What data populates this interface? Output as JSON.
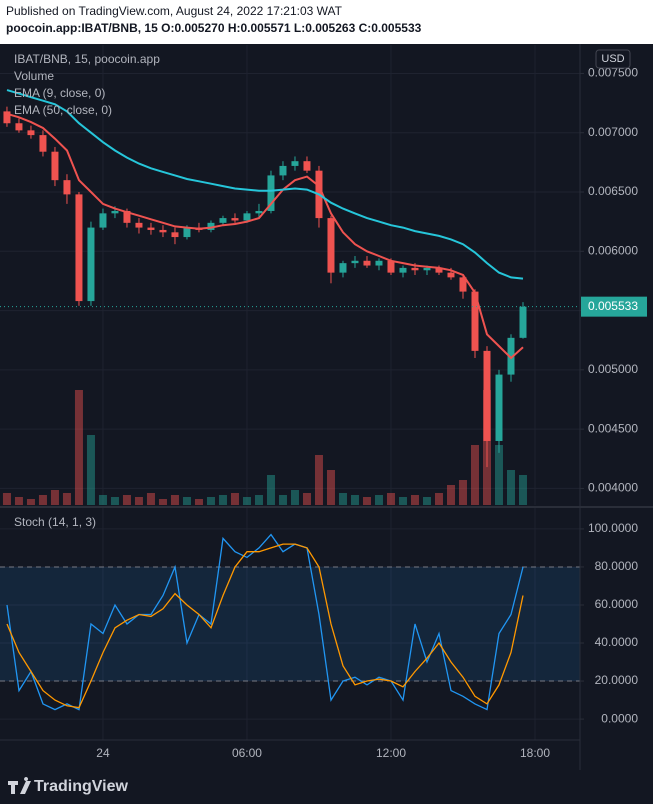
{
  "header": {
    "published": "Published on TradingView.com, August 24, 2022 17:21:03 WAT",
    "symbol_line": "poocoin.app:IBAT/BNB, 15  O:0.005270 H:0.005571 L:0.005263 C:0.005533"
  },
  "chart_data": [
    {
      "type": "candlestick",
      "title": "IBAT/BNB, 15, poocoin.app",
      "currency": "USD",
      "last_price_label": "0.005533",
      "up_color": "#26a69a",
      "down_color": "#ef5350",
      "x": [
        -4,
        -3.5,
        -3,
        -2.5,
        -2,
        -1.5,
        -1,
        -0.5,
        0,
        0.5,
        1,
        1.5,
        2,
        2.5,
        3,
        3.5,
        4,
        4.5,
        5,
        5.5,
        6,
        6.5,
        7,
        7.5,
        8,
        8.5,
        9,
        9.5,
        10,
        10.5,
        11,
        11.5,
        12,
        12.5,
        13,
        13.5,
        14,
        14.5,
        15,
        15.5,
        16,
        16.5,
        17,
        17.5
      ],
      "open": [
        0.00718,
        0.00708,
        0.00702,
        0.00698,
        0.00684,
        0.0066,
        0.00648,
        0.00558,
        0.0062,
        0.00632,
        0.00634,
        0.00624,
        0.0062,
        0.00618,
        0.00616,
        0.00612,
        0.0062,
        0.00618,
        0.00624,
        0.00628,
        0.00626,
        0.00632,
        0.00634,
        0.00664,
        0.00672,
        0.00676,
        0.00668,
        0.00628,
        0.00582,
        0.0059,
        0.00592,
        0.00588,
        0.00592,
        0.00582,
        0.00586,
        0.00584,
        0.00586,
        0.00582,
        0.00578,
        0.00566,
        0.00516,
        0.0044,
        0.00496,
        0.00527
      ],
      "high": [
        0.00722,
        0.00712,
        0.00706,
        0.00702,
        0.00688,
        0.00665,
        0.0065,
        0.00625,
        0.00636,
        0.00638,
        0.00636,
        0.00628,
        0.00624,
        0.00622,
        0.0062,
        0.00622,
        0.00624,
        0.00626,
        0.0063,
        0.00632,
        0.00634,
        0.0064,
        0.00668,
        0.00676,
        0.0068,
        0.0068,
        0.00672,
        0.0063,
        0.00592,
        0.00596,
        0.00596,
        0.00594,
        0.00594,
        0.00588,
        0.0059,
        0.00588,
        0.00588,
        0.00586,
        0.0058,
        0.00568,
        0.0052,
        0.005,
        0.0053,
        0.005571
      ],
      "low": [
        0.00705,
        0.007,
        0.00695,
        0.0068,
        0.00655,
        0.0064,
        0.00554,
        0.00554,
        0.00618,
        0.00628,
        0.0062,
        0.00615,
        0.00614,
        0.00612,
        0.00606,
        0.0061,
        0.00616,
        0.00616,
        0.00622,
        0.00624,
        0.00624,
        0.00628,
        0.00632,
        0.0066,
        0.00668,
        0.00666,
        0.0062,
        0.00573,
        0.00578,
        0.00586,
        0.00586,
        0.00584,
        0.0058,
        0.00578,
        0.0058,
        0.0058,
        0.0058,
        0.00576,
        0.0056,
        0.0051,
        0.00418,
        0.0043,
        0.0049,
        0.005263
      ],
      "close": [
        0.00708,
        0.00702,
        0.00698,
        0.00684,
        0.0066,
        0.00648,
        0.00558,
        0.0062,
        0.00632,
        0.00634,
        0.00624,
        0.0062,
        0.00618,
        0.00616,
        0.00612,
        0.0062,
        0.00618,
        0.00624,
        0.00628,
        0.00626,
        0.00632,
        0.00634,
        0.00664,
        0.00672,
        0.00676,
        0.00668,
        0.00628,
        0.00582,
        0.0059,
        0.00592,
        0.00588,
        0.00592,
        0.00582,
        0.00586,
        0.00584,
        0.00586,
        0.00582,
        0.00578,
        0.00566,
        0.00516,
        0.0044,
        0.00496,
        0.00527,
        0.005533
      ],
      "volume": {
        "name": "Volume",
        "values": [
          12,
          8,
          6,
          10,
          15,
          12,
          115,
          70,
          10,
          8,
          10,
          8,
          12,
          6,
          10,
          8,
          6,
          8,
          10,
          12,
          8,
          10,
          30,
          10,
          15,
          12,
          50,
          35,
          12,
          10,
          8,
          10,
          12,
          8,
          10,
          8,
          12,
          20,
          25,
          60,
          115,
          60,
          35,
          30
        ]
      },
      "series": [
        {
          "name": "EMA (9, close, 0)",
          "color": "#ef5350",
          "values": [
            0.00716,
            0.00713,
            0.00709,
            0.00704,
            0.00695,
            0.00685,
            0.0066,
            0.0065,
            0.0064,
            0.00636,
            0.00633,
            0.0063,
            0.00627,
            0.00624,
            0.00621,
            0.0062,
            0.00619,
            0.0062,
            0.00622,
            0.00623,
            0.00625,
            0.00628,
            0.0064,
            0.00652,
            0.0066,
            0.00663,
            0.00655,
            0.00632,
            0.00616,
            0.00606,
            0.006,
            0.00596,
            0.00592,
            0.0059,
            0.00588,
            0.00587,
            0.00586,
            0.00584,
            0.0058,
            0.00565,
            0.0053,
            0.0052,
            0.0051,
            0.00519
          ]
        },
        {
          "name": "EMA (50, close, 0)",
          "color": "#26c6da",
          "values": [
            0.00736,
            0.00733,
            0.0073,
            0.00727,
            0.00724,
            0.00718,
            0.00708,
            0.007,
            0.00692,
            0.00685,
            0.00679,
            0.00674,
            0.0067,
            0.00667,
            0.00664,
            0.00661,
            0.00659,
            0.00657,
            0.00655,
            0.00653,
            0.00652,
            0.00651,
            0.00651,
            0.00652,
            0.00653,
            0.00652,
            0.00648,
            0.00641,
            0.00636,
            0.00632,
            0.00628,
            0.00625,
            0.00622,
            0.0062,
            0.00617,
            0.00615,
            0.00613,
            0.0061,
            0.00606,
            0.00599,
            0.0059,
            0.00582,
            0.00578,
            0.00577
          ]
        }
      ],
      "xlim": [
        -4.29,
        19.875
      ],
      "xticks": [
        {
          "value": 0,
          "label": "24"
        },
        {
          "value": 6,
          "label": "06:00"
        },
        {
          "value": 12,
          "label": "12:00"
        },
        {
          "value": 18,
          "label": "18:00"
        }
      ],
      "ylim": [
        0.00386,
        0.00774
      ],
      "yticks": [
        {
          "value": 0.004,
          "label": "0.004000"
        },
        {
          "value": 0.0045,
          "label": "0.004500"
        },
        {
          "value": 0.005,
          "label": "0.005000"
        },
        {
          "value": 0.0055,
          "label": "0.005500"
        },
        {
          "value": 0.006,
          "label": "0.006000"
        },
        {
          "value": 0.0065,
          "label": "0.006500"
        },
        {
          "value": 0.007,
          "label": "0.007000"
        },
        {
          "value": 0.0075,
          "label": "0.007500"
        }
      ],
      "grid": true
    },
    {
      "type": "line",
      "title": "Stoch (14, 1, 3)",
      "x": [
        -4,
        -3.5,
        -3,
        -2.5,
        -2,
        -1.5,
        -1,
        -0.5,
        0,
        0.5,
        1,
        1.5,
        2,
        2.5,
        3,
        3.5,
        4,
        4.5,
        5,
        5.5,
        6,
        6.5,
        7,
        7.5,
        8,
        8.5,
        9,
        9.5,
        10,
        10.5,
        11,
        11.5,
        12,
        12.5,
        13,
        13.5,
        14,
        14.5,
        15,
        15.5,
        16,
        16.5,
        17,
        17.5
      ],
      "series": [
        {
          "color": "#2196f3",
          "values": [
            60,
            15,
            25,
            8,
            5,
            8,
            5,
            50,
            45,
            60,
            50,
            55,
            55,
            65,
            80,
            40,
            55,
            50,
            95,
            88,
            85,
            90,
            97,
            88,
            92,
            90,
            55,
            10,
            20,
            22,
            18,
            22,
            20,
            10,
            50,
            30,
            45,
            15,
            12,
            8,
            5,
            45,
            55,
            80
          ]
        },
        {
          "color": "#ff9800",
          "values": [
            50,
            35,
            25,
            15,
            10,
            7,
            6,
            20,
            35,
            48,
            52,
            55,
            54,
            58,
            66,
            60,
            55,
            48,
            65,
            80,
            88,
            88,
            90,
            92,
            92,
            90,
            80,
            50,
            28,
            18,
            20,
            21,
            20,
            17,
            25,
            32,
            40,
            30,
            22,
            12,
            8,
            18,
            35,
            65
          ]
        }
      ],
      "band": [
        20,
        80
      ],
      "xlim": [
        -4.29,
        19.875
      ],
      "xticks": [
        {
          "value": 0,
          "label": "24"
        },
        {
          "value": 6,
          "label": "06:00"
        },
        {
          "value": 12,
          "label": "12:00"
        },
        {
          "value": 18,
          "label": "18:00"
        }
      ],
      "ylim": [
        -11,
        111
      ],
      "yticks": [
        {
          "value": 0,
          "label": "0.0000"
        },
        {
          "value": 20,
          "label": "20.0000"
        },
        {
          "value": 40,
          "label": "40.0000"
        },
        {
          "value": 60,
          "label": "60.0000"
        },
        {
          "value": 80,
          "label": "80.0000"
        },
        {
          "value": 100,
          "label": "100.0000"
        }
      ],
      "grid": true
    }
  ],
  "footer": {
    "brand": "TradingView"
  }
}
